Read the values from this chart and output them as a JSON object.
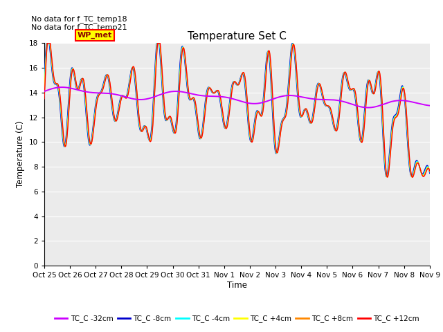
{
  "title": "Temperature Set C",
  "xlabel": "Time",
  "ylabel": "Temperature (C)",
  "ylim": [
    0,
    18
  ],
  "yticks": [
    0,
    2,
    4,
    6,
    8,
    10,
    12,
    14,
    16,
    18
  ],
  "annotations": [
    "No data for f_TC_temp18",
    "No data for f_TC_temp21"
  ],
  "wp_met_label": "WP_met",
  "legend_entries": [
    {
      "label": "TC_C -32cm",
      "color": "#CC00FF"
    },
    {
      "label": "TC_C -8cm",
      "color": "#0000CC"
    },
    {
      "label": "TC_C -4cm",
      "color": "#00FFFF"
    },
    {
      "label": "TC_C +4cm",
      "color": "#FFFF00"
    },
    {
      "label": "TC_C +8cm",
      "color": "#FF8800"
    },
    {
      "label": "TC_C +12cm",
      "color": "#FF0000"
    }
  ],
  "x_tick_labels": [
    "Oct 25",
    "Oct 26",
    "Oct 27",
    "Oct 28",
    "Oct 29",
    "Oct 30",
    "Oct 31",
    "Nov 1",
    "Nov 2",
    "Nov 3",
    "Nov 4",
    "Nov 5",
    "Nov 6",
    "Nov 7",
    "Nov 8",
    "Nov 9"
  ],
  "plot_bg": "#EBEBEB"
}
